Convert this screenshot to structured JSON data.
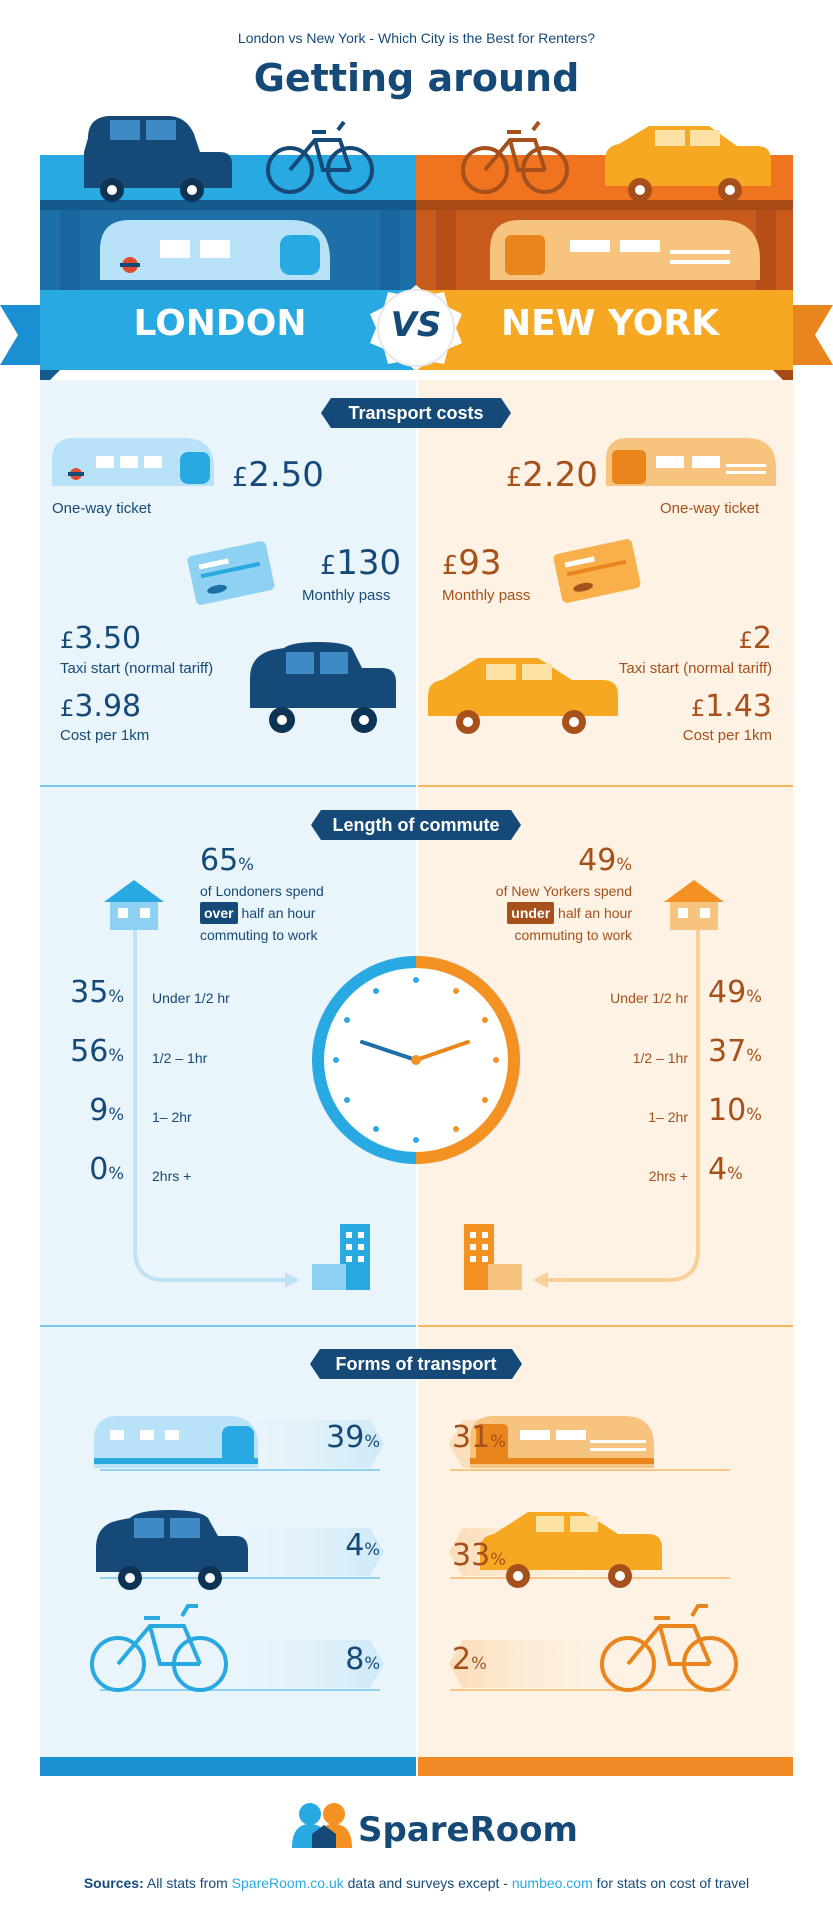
{
  "header": {
    "subtitle": "London vs New York - Which City is the Best for Renters?",
    "title": "Getting around"
  },
  "banner": {
    "left": "LONDON",
    "vs": "VS",
    "right": "NEW YORK"
  },
  "colors": {
    "london_dark": "#154a78",
    "london_light": "#29a9e1",
    "london_bg": "#eaf5fb",
    "ny_dark": "#a6501b",
    "ny_orange": "#f39222",
    "ny_bg": "#fdf2e3"
  },
  "transport_costs": {
    "title": "Transport costs",
    "london": {
      "ticket_value": "2.50",
      "ticket_label": "One-way ticket",
      "pass_value": "130",
      "pass_label": "Monthly pass",
      "taxi_start_value": "3.50",
      "taxi_start_label": "Taxi start (normal tariff)",
      "taxi_km_value": "3.98",
      "taxi_km_label": "Cost per 1km"
    },
    "new_york": {
      "ticket_value": "2.20",
      "ticket_label": "One-way ticket",
      "pass_value": "93",
      "pass_label": "Monthly pass",
      "taxi_start_value": "2",
      "taxi_start_label": "Taxi start (normal tariff)",
      "taxi_km_value": "1.43",
      "taxi_km_label": "Cost per 1km"
    },
    "currency": "£"
  },
  "commute": {
    "title": "Length of commute",
    "london": {
      "headline": "65",
      "line1": "of Londoners spend",
      "highlight": "over",
      "line2": " half an hour",
      "line3": "commuting to work"
    },
    "new_york": {
      "headline": "49",
      "line1": "of New Yorkers spend",
      "highlight": "under",
      "line2": " half an hour",
      "line3": "commuting to work"
    },
    "rows": [
      {
        "label": "Under 1/2 hr",
        "london": "35",
        "new_york": "49"
      },
      {
        "label": "1/2 – 1hr",
        "london": "56",
        "new_york": "37"
      },
      {
        "label": "1– 2hr",
        "london": "9",
        "new_york": "10"
      },
      {
        "label": "2hrs +",
        "london": "0",
        "new_york": "4"
      }
    ],
    "pct_symbol": "%"
  },
  "forms": {
    "title": "Forms of transport",
    "london": {
      "train": "39",
      "taxi": "4",
      "bike": "8"
    },
    "new_york": {
      "train": "31",
      "taxi": "33",
      "bike": "2"
    }
  },
  "footer": {
    "brand": "SpareRoom",
    "sources_label": "Sources:",
    "sources_text1": " All stats from ",
    "link1": "SpareRoom.co.uk",
    "sources_text2": " data and surveys except - ",
    "link2": "numbeo.com",
    "sources_text3": " for stats on cost of travel"
  }
}
